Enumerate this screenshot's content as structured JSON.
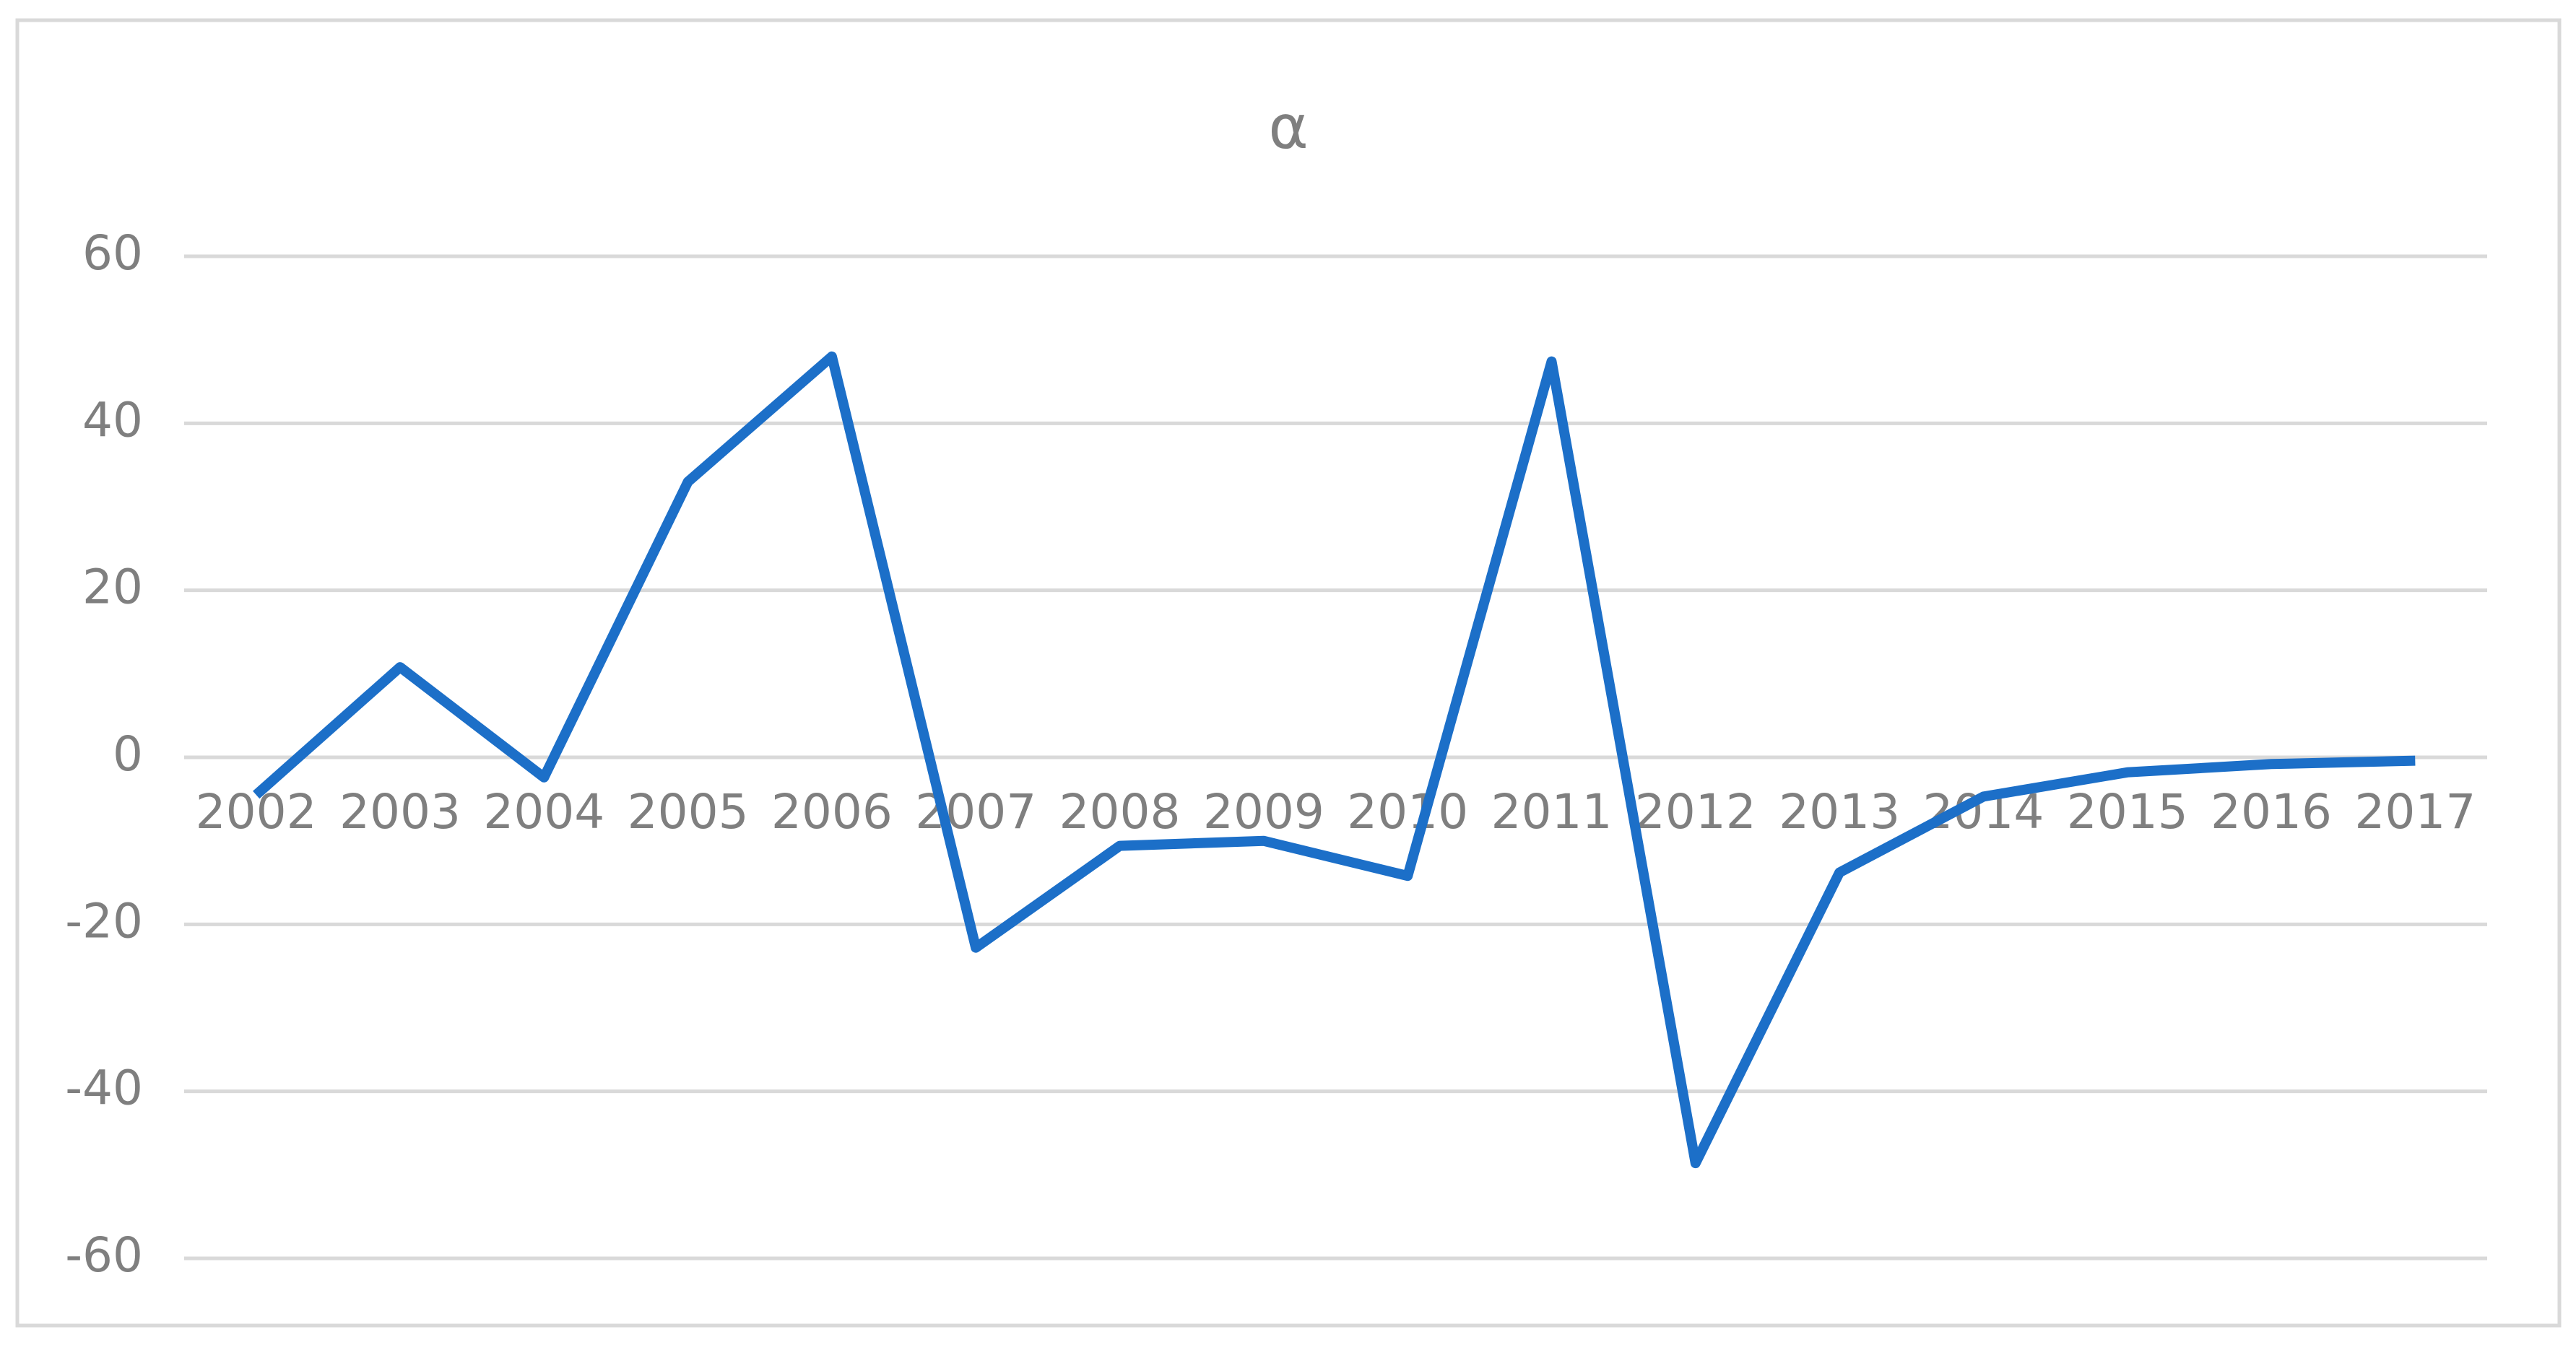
{
  "chart_data": {
    "type": "line",
    "title": "α",
    "categories": [
      "2002",
      "2003",
      "2004",
      "2005",
      "2006",
      "2007",
      "2008",
      "2009",
      "2010",
      "2011",
      "2012",
      "2013",
      "2014",
      "2015",
      "2016",
      "2017"
    ],
    "values": [
      -4.5,
      10.8,
      -2.4,
      33,
      48,
      -22.8,
      -10.6,
      -10,
      -14.2,
      47.4,
      -48.6,
      -13.8,
      -4.7,
      -1.8,
      -0.8,
      -0.4
    ],
    "color": "#1c6fc8",
    "ylim": [
      -60,
      60
    ],
    "yticks": [
      -60,
      -40,
      -20,
      0,
      20,
      40,
      60
    ],
    "grid": true
  }
}
